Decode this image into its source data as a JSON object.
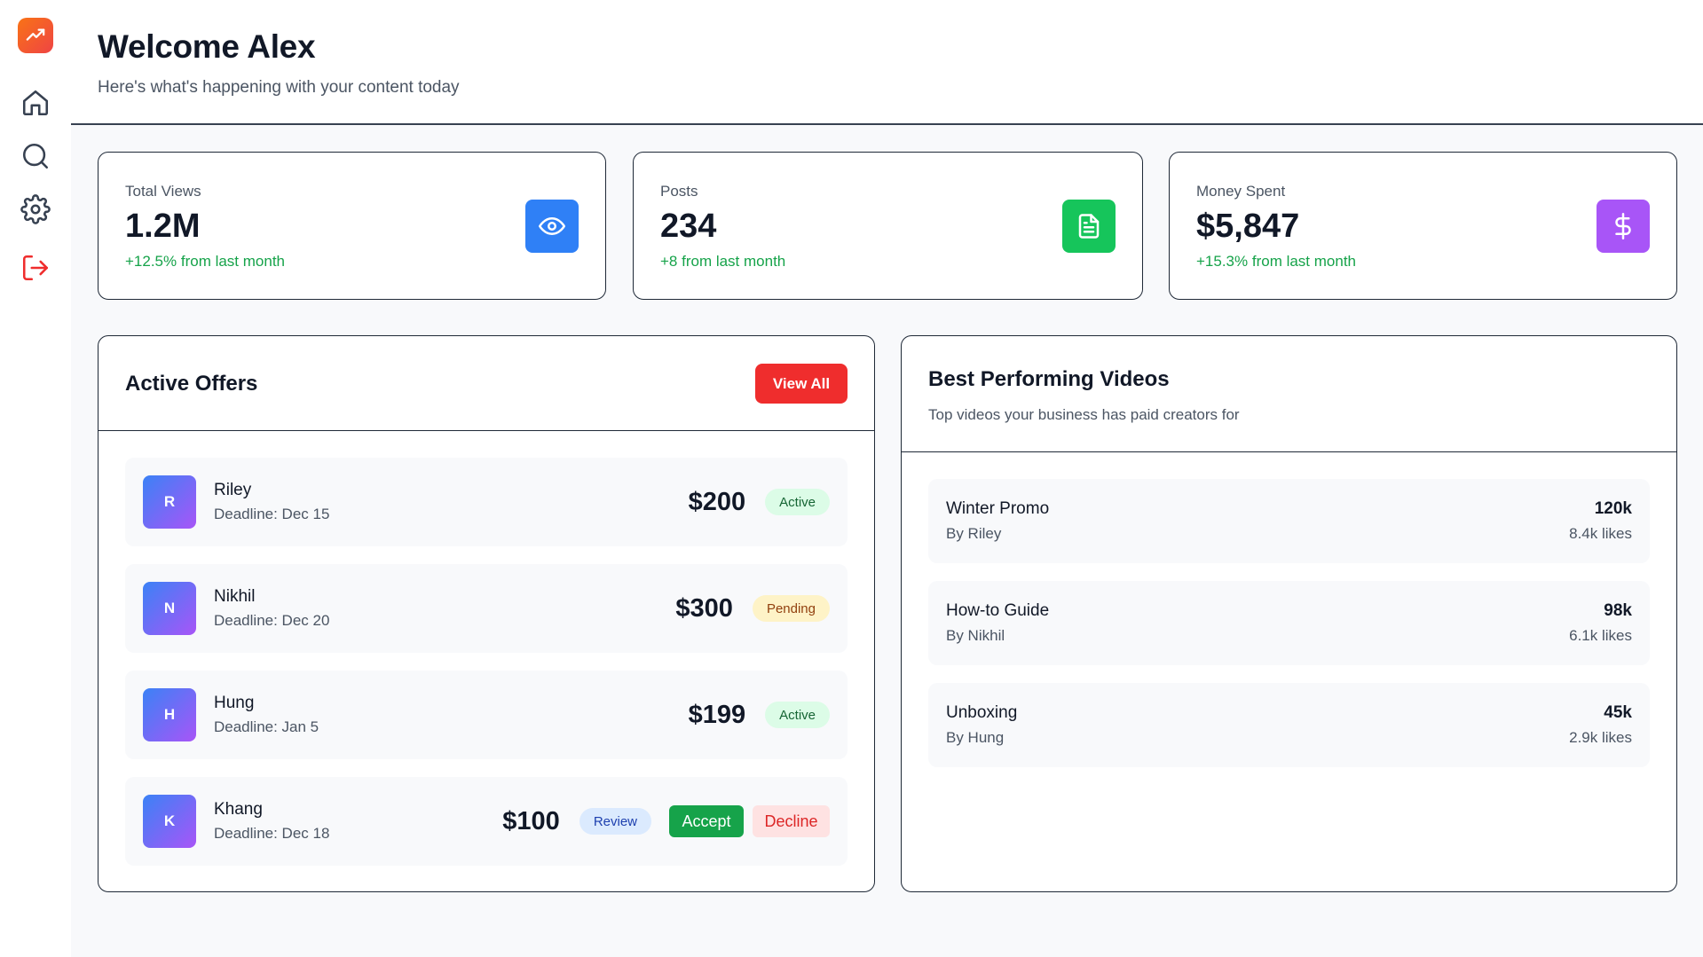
{
  "header": {
    "title": "Welcome Alex",
    "subtitle": "Here's what's happening with your content today"
  },
  "sidebar": {
    "items": [
      {
        "icon": "home-icon"
      },
      {
        "icon": "search-icon"
      },
      {
        "icon": "gear-icon"
      },
      {
        "icon": "logout-icon"
      }
    ]
  },
  "stats": [
    {
      "label": "Total Views",
      "value": "1.2M",
      "change": "+12.5% from last month",
      "icon": "eye-icon",
      "color": "#2f80f6"
    },
    {
      "label": "Posts",
      "value": "234",
      "change": "+8 from last month",
      "icon": "document-icon",
      "color": "#16c55b"
    },
    {
      "label": "Money Spent",
      "value": "$5,847",
      "change": "+15.3% from last month",
      "icon": "dollar-icon",
      "color": "#a855f7"
    }
  ],
  "offers": {
    "title": "Active Offers",
    "view_all": "View All",
    "items": [
      {
        "initial": "R",
        "name": "Riley",
        "deadline": "Deadline: Dec 15",
        "amount": "$200",
        "status": "Active"
      },
      {
        "initial": "N",
        "name": "Nikhil",
        "deadline": "Deadline: Dec 20",
        "amount": "$300",
        "status": "Pending"
      },
      {
        "initial": "H",
        "name": "Hung",
        "deadline": "Deadline: Jan 5",
        "amount": "$199",
        "status": "Active"
      },
      {
        "initial": "K",
        "name": "Khang",
        "deadline": "Deadline: Dec 18",
        "amount": "$100",
        "status": "Review",
        "accept": "Accept",
        "decline": "Decline"
      }
    ]
  },
  "videos": {
    "title": "Best Performing Videos",
    "subtitle": "Top videos your business has paid creators for",
    "items": [
      {
        "title": "Winter Promo",
        "author": "By Riley",
        "views": "120k",
        "likes": "8.4k likes"
      },
      {
        "title": "How-to Guide",
        "author": "By Nikhil",
        "views": "98k",
        "likes": "6.1k likes"
      },
      {
        "title": "Unboxing",
        "author": "By Hung",
        "views": "45k",
        "likes": "2.9k likes"
      }
    ]
  }
}
